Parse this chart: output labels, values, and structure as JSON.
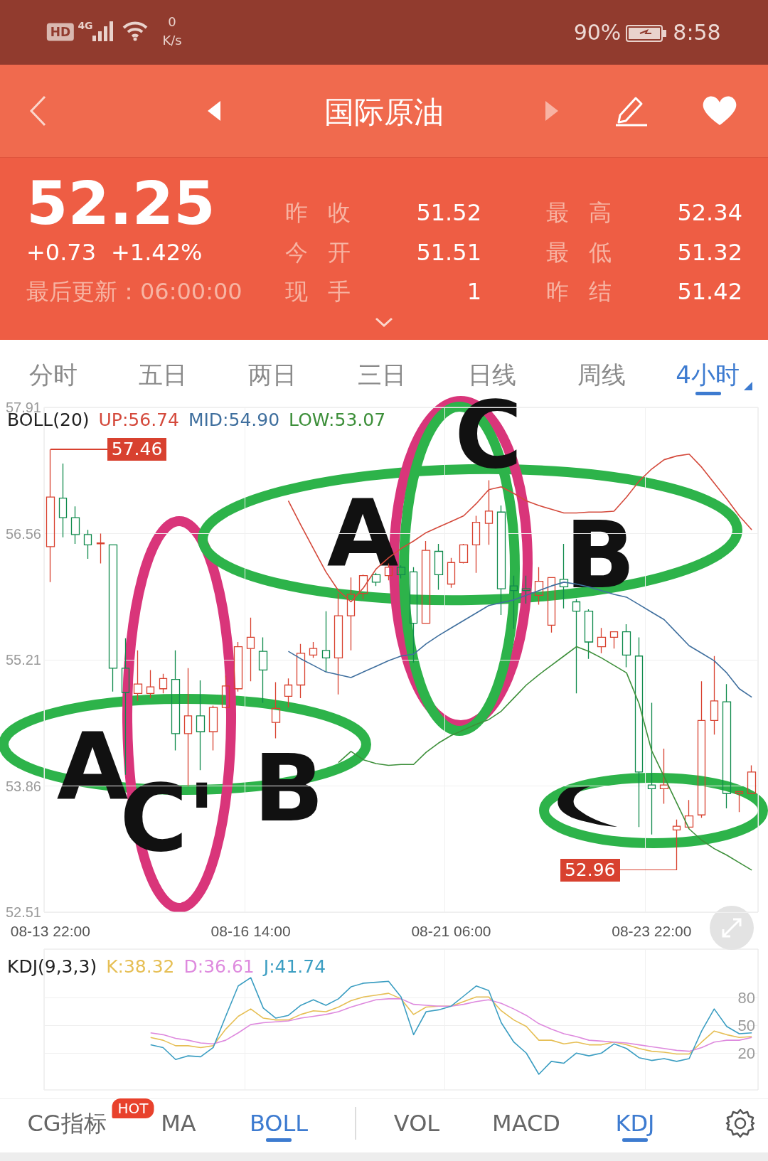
{
  "chart_data": [
    {
      "type": "other",
      "title": "国际原油",
      "annotations": [
        "HD",
        "4G",
        "0",
        "K/s",
        "90%",
        "8:58",
        "52.25",
        "+0.73",
        "+1.42%",
        "最后更新：06:00:00",
        "昨收",
        "51.52",
        "今开",
        "51.51",
        "现手",
        "1",
        "最高",
        "52.34",
        "最低",
        "51.32",
        "昨结",
        "51.42",
        "分时",
        "五日",
        "两日",
        "三日",
        "日线",
        "周线",
        "4小时"
      ]
    },
    {
      "type": "candlestick",
      "title": "BOLL(20)",
      "categories": [
        "08-13 22:00",
        null,
        null,
        null,
        null,
        null,
        null,
        null,
        null,
        null,
        null,
        null,
        null,
        null,
        null,
        null,
        "08-16 14:00",
        null,
        null,
        null,
        null,
        null,
        null,
        null,
        null,
        null,
        null,
        null,
        null,
        null,
        null,
        null,
        "08-21 06:00",
        null,
        null,
        null,
        null,
        null,
        null,
        null,
        null,
        null,
        null,
        null,
        null,
        null,
        null,
        null,
        "08-23 22:00",
        null,
        null,
        null,
        null,
        null,
        null,
        null,
        null
      ],
      "ohlc": [
        [
          56.42,
          57.46,
          56.04,
          56.95
        ],
        [
          56.94,
          57.31,
          56.52,
          56.73
        ],
        [
          56.73,
          56.85,
          56.45,
          56.55
        ],
        [
          56.55,
          56.6,
          56.29,
          56.44
        ],
        [
          56.45,
          56.56,
          56.24,
          56.46
        ],
        [
          56.44,
          56.44,
          54.87,
          55.12
        ],
        [
          55.12,
          55.44,
          53.98,
          54.86
        ],
        [
          54.85,
          55.31,
          54.77,
          54.95
        ],
        [
          54.85,
          55.1,
          54.8,
          54.92
        ],
        [
          54.9,
          55.06,
          54.85,
          55.01
        ],
        [
          55.0,
          55.31,
          54.24,
          54.42
        ],
        [
          54.42,
          55.12,
          53.86,
          54.61
        ],
        [
          54.61,
          54.99,
          54.03,
          54.44
        ],
        [
          54.44,
          54.72,
          54.24,
          54.7
        ],
        [
          54.7,
          55.04,
          54.69,
          54.93
        ],
        [
          54.9,
          55.4,
          54.87,
          55.35
        ],
        [
          55.33,
          55.66,
          54.98,
          55.45
        ],
        [
          55.3,
          55.45,
          54.75,
          55.1
        ],
        [
          54.54,
          54.97,
          54.37,
          54.69
        ],
        [
          54.82,
          55.01,
          54.7,
          54.94
        ],
        [
          54.94,
          55.38,
          54.8,
          55.28
        ],
        [
          55.26,
          55.4,
          55.23,
          55.33
        ],
        [
          55.31,
          55.73,
          55.08,
          55.23
        ],
        [
          55.23,
          55.92,
          54.84,
          55.68
        ],
        [
          55.68,
          56.09,
          55.31,
          55.91
        ],
        [
          55.92,
          56.12,
          55.86,
          56.11
        ],
        [
          56.12,
          56.14,
          56.0,
          56.04
        ],
        [
          56.11,
          56.24,
          56.06,
          56.2
        ],
        [
          56.2,
          56.22,
          56.08,
          56.12
        ],
        [
          56.15,
          56.2,
          55.18,
          55.6
        ],
        [
          55.6,
          56.48,
          55.6,
          56.38
        ],
        [
          56.37,
          56.45,
          55.96,
          56.12
        ],
        [
          56.02,
          56.3,
          55.98,
          56.25
        ],
        [
          56.25,
          56.45,
          56.24,
          56.44
        ],
        [
          56.44,
          56.75,
          56.14,
          56.68
        ],
        [
          56.67,
          57.13,
          56.44,
          56.8
        ],
        [
          56.79,
          56.86,
          55.69,
          55.97
        ],
        [
          56.0,
          56.11,
          55.54,
          55.95
        ],
        [
          55.97,
          56.11,
          55.81,
          55.95
        ],
        [
          55.9,
          56.2,
          55.8,
          56.05
        ],
        [
          55.58,
          56.09,
          55.5,
          56.09
        ],
        [
          56.07,
          56.45,
          55.76,
          55.99
        ],
        [
          55.83,
          55.86,
          54.85,
          55.73
        ],
        [
          55.73,
          55.75,
          55.22,
          55.4
        ],
        [
          55.35,
          55.55,
          55.28,
          55.45
        ],
        [
          55.45,
          55.51,
          55.33,
          55.51
        ],
        [
          55.51,
          55.59,
          55.13,
          55.26
        ],
        [
          55.25,
          55.45,
          53.42,
          54.01
        ],
        [
          53.87,
          54.75,
          53.34,
          53.83
        ],
        [
          53.83,
          54.26,
          53.67,
          53.87
        ],
        [
          53.39,
          53.5,
          52.96,
          53.43
        ],
        [
          53.42,
          53.71,
          53.4,
          53.54
        ],
        [
          53.55,
          54.98,
          53.52,
          54.56
        ],
        [
          54.56,
          55.25,
          54.41,
          54.77
        ],
        [
          54.76,
          54.95,
          53.62,
          53.78
        ],
        [
          53.78,
          53.8,
          53.58,
          53.8
        ],
        [
          53.78,
          54.08,
          53.78,
          54.01
        ]
      ],
      "colors": [
        "#d8412f",
        "#0f8a4c",
        "#0f8a4c",
        "#0f8a4c",
        "#d8412f",
        "#0f8a4c",
        "#0f8a4c",
        "#d8412f",
        "#d8412f",
        "#d8412f",
        "#0f8a4c",
        "#d8412f",
        "#0f8a4c",
        "#d8412f",
        "#d8412f",
        "#d8412f",
        "#d8412f",
        "#0f8a4c",
        "#d8412f",
        "#d8412f",
        "#d8412f",
        "#d8412f",
        "#0f8a4c",
        "#d8412f",
        "#d8412f",
        "#d8412f",
        "#0f8a4c",
        "#d8412f",
        "#0f8a4c",
        "#0f8a4c",
        "#d8412f",
        "#0f8a4c",
        "#d8412f",
        "#d8412f",
        "#d8412f",
        "#d8412f",
        "#0f8a4c",
        "#0f8a4c",
        "#0f8a4c",
        "#d8412f",
        "#d8412f",
        "#0f8a4c",
        "#0f8a4c",
        "#0f8a4c",
        "#d8412f",
        "#d8412f",
        "#0f8a4c",
        "#0f8a4c",
        "#0f8a4c",
        "#d8412f",
        "#d8412f",
        "#d8412f",
        "#d8412f",
        "#d8412f",
        "#0f8a4c",
        "#d8412f",
        "#d8412f"
      ],
      "series": [
        {
          "type": "line",
          "name": "UP:56.74",
          "color": "#d4493b",
          "values": [
            null,
            null,
            null,
            null,
            null,
            null,
            null,
            null,
            null,
            null,
            null,
            null,
            null,
            null,
            null,
            null,
            null,
            null,
            null,
            56.91,
            56.65,
            56.4,
            56.15,
            55.95,
            55.83,
            55.98,
            56.18,
            56.3,
            56.4,
            56.48,
            56.57,
            56.63,
            56.69,
            56.75,
            56.88,
            57.03,
            57.06,
            56.99,
            56.91,
            56.86,
            56.82,
            56.78,
            56.78,
            56.79,
            56.79,
            56.8,
            56.95,
            57.12,
            57.25,
            57.35,
            57.39,
            57.41,
            57.27,
            57.1,
            56.93,
            56.75,
            56.6
          ]
        },
        {
          "type": "line",
          "name": "MID:54.90",
          "color": "#3f6f9e",
          "values": [
            null,
            null,
            null,
            null,
            null,
            null,
            null,
            null,
            null,
            null,
            null,
            null,
            null,
            null,
            null,
            null,
            null,
            null,
            null,
            55.3,
            55.22,
            55.15,
            55.08,
            55.05,
            55.02,
            55.08,
            55.14,
            55.2,
            55.25,
            55.27,
            55.38,
            55.47,
            55.55,
            55.63,
            55.71,
            55.79,
            55.82,
            55.85,
            55.9,
            55.95,
            56.0,
            56.04,
            56.02,
            55.99,
            55.95,
            55.91,
            55.88,
            55.8,
            55.72,
            55.64,
            55.5,
            55.36,
            55.28,
            55.2,
            55.07,
            54.9,
            54.81
          ]
        },
        {
          "type": "line",
          "name": "LOW:53.07",
          "color": "#3d8f3a",
          "values": [
            null,
            null,
            null,
            null,
            null,
            null,
            null,
            null,
            null,
            null,
            null,
            null,
            null,
            null,
            null,
            null,
            null,
            null,
            null,
            null,
            null,
            null,
            null,
            54.11,
            54.23,
            54.14,
            54.1,
            54.08,
            54.09,
            54.09,
            54.22,
            54.32,
            54.4,
            54.46,
            54.52,
            54.57,
            54.66,
            54.8,
            54.94,
            55.05,
            55.15,
            55.25,
            55.35,
            55.3,
            55.23,
            55.15,
            55.07,
            54.74,
            54.24,
            53.96,
            53.68,
            53.4,
            53.28,
            53.19,
            53.12,
            53.04,
            52.96
          ]
        }
      ],
      "ylim": [
        52.51,
        57.91
      ],
      "yticks": [
        52.51,
        53.86,
        55.21,
        56.56,
        57.91
      ],
      "grid": true,
      "legend": "top left",
      "marker": "none",
      "annotations": [
        "57.46",
        "52.96",
        "A",
        "C'",
        "B",
        "A",
        "C",
        "B"
      ]
    },
    {
      "type": "line",
      "title": "KDJ(9,3,3)",
      "series": [
        {
          "name": "K:38.32",
          "color": "#e6bf55",
          "values": [
            null,
            null,
            null,
            null,
            null,
            null,
            null,
            null,
            37,
            34,
            28,
            28,
            26,
            28,
            46,
            60,
            68,
            58,
            56,
            56,
            62,
            66,
            65,
            70,
            77,
            81,
            83,
            85,
            79,
            62,
            70,
            71,
            71,
            76,
            81,
            81,
            66,
            56,
            49,
            34,
            34,
            30,
            32,
            29,
            29,
            32,
            29,
            25,
            22,
            21,
            19,
            19,
            32,
            44,
            40,
            37,
            38
          ]
        },
        {
          "name": "D:36.61",
          "color": "#de8ade",
          "values": [
            null,
            null,
            null,
            null,
            null,
            null,
            null,
            null,
            42,
            40,
            36,
            34,
            31,
            30,
            34,
            42,
            51,
            53,
            54,
            55,
            58,
            60,
            62,
            65,
            70,
            74,
            78,
            79,
            79,
            73,
            72,
            71,
            71,
            73,
            76,
            78,
            74,
            68,
            61,
            52,
            46,
            41,
            38,
            34,
            33,
            32,
            31,
            29,
            27,
            25,
            23,
            22,
            26,
            32,
            34,
            34,
            37
          ]
        },
        {
          "name": "J:41.74",
          "color": "#3c9ec2",
          "values": [
            null,
            null,
            null,
            null,
            null,
            null,
            null,
            null,
            29,
            26,
            13,
            17,
            16,
            26,
            60,
            93,
            102,
            69,
            58,
            61,
            72,
            78,
            72,
            79,
            92,
            96,
            97,
            98,
            81,
            40,
            65,
            67,
            71,
            82,
            93,
            88,
            53,
            32,
            20,
            -3,
            11,
            9,
            20,
            17,
            20,
            30,
            25,
            15,
            12,
            14,
            11,
            14,
            44,
            68,
            49,
            41,
            42
          ]
        }
      ],
      "ylim": [
        -20,
        133
      ],
      "yticks": [
        20,
        50,
        80
      ],
      "tick_labels": "y",
      "grid": true,
      "legend": "top left",
      "marker": "none"
    },
    {
      "type": "other",
      "annotations": [
        "CG指标",
        "HOT",
        "MA",
        "BOLL",
        "VOL",
        "MACD",
        "KDJ"
      ]
    }
  ]
}
